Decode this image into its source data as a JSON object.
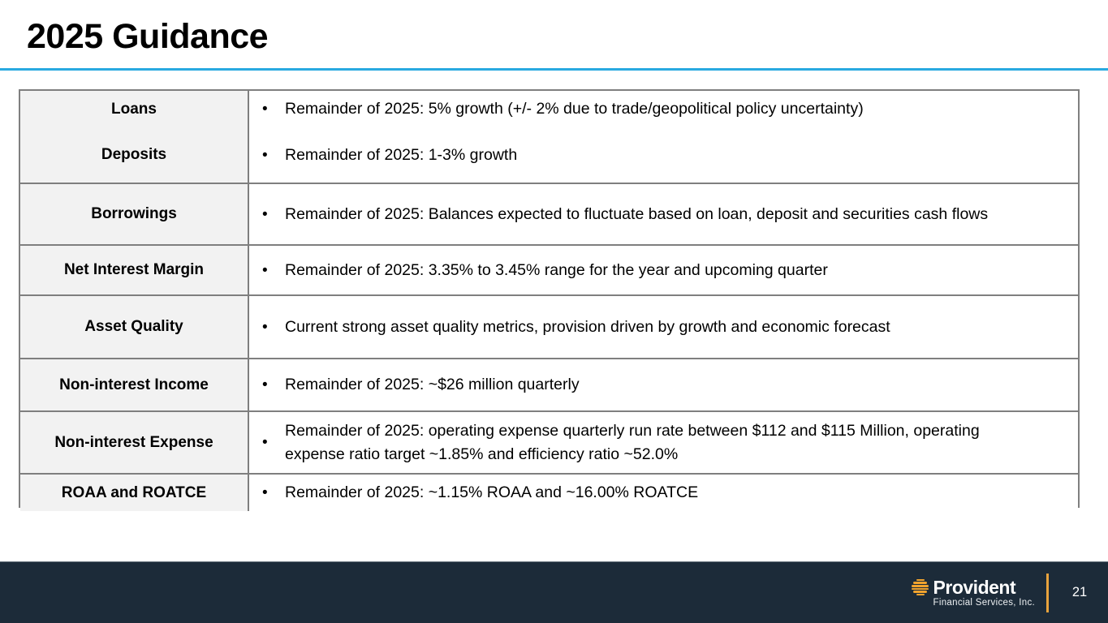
{
  "slide": {
    "title": "2025 Guidance"
  },
  "table": {
    "bullet": "•",
    "rows": [
      {
        "label": "Loans",
        "text": "Remainder of 2025: 5% growth (+/- 2% due to trade/geopolitical policy uncertainty)"
      },
      {
        "label": "Deposits",
        "text": "Remainder of 2025: 1-3% growth"
      },
      {
        "label": "Borrowings",
        "text": "Remainder of 2025: Balances expected to fluctuate based on loan, deposit and securities cash flows"
      },
      {
        "label": "Net Interest Margin",
        "text": "Remainder of 2025: 3.35% to 3.45% range for the year and upcoming quarter"
      },
      {
        "label": "Asset Quality",
        "text": "Current strong asset quality metrics, provision driven by growth and economic forecast"
      },
      {
        "label": "Non-interest Income",
        "text": "Remainder of 2025: ~$26 million quarterly"
      },
      {
        "label": "Non-interest Expense",
        "text": "Remainder of 2025: operating expense quarterly run rate between $112 and $115 Million, operating expense ratio target ~1.85% and efficiency ratio ~52.0%"
      },
      {
        "label": "ROAA and ROATCE",
        "text": "Remainder of 2025: ~1.15% ROAA and ~16.00% ROATCE"
      }
    ]
  },
  "footer": {
    "logo_name": "Provident",
    "logo_subtitle": "Financial Services, Inc.",
    "page_number": "21"
  },
  "colors": {
    "accent_rule": "#29A9E0",
    "footer_bg": "#1C2B39",
    "logo_gold": "#F0A32E",
    "divider_gold": "#E8A33D",
    "header_cell_bg": "#F2F2F2",
    "table_border": "#7F7F7F"
  }
}
